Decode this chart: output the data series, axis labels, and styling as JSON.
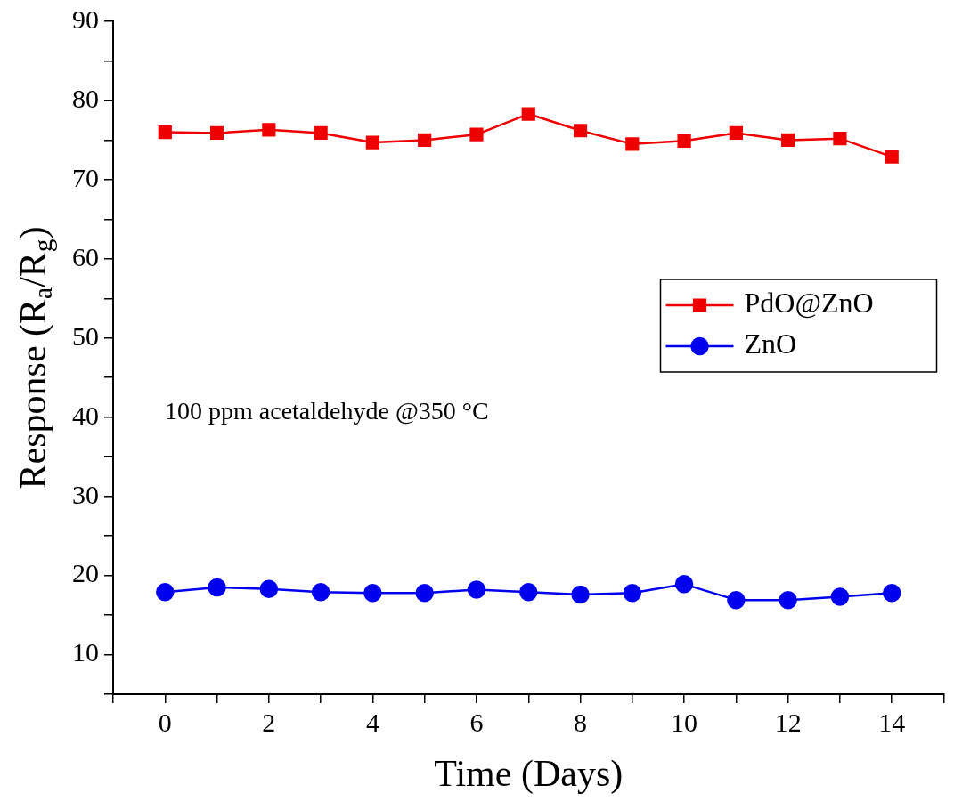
{
  "chart_data": {
    "type": "line",
    "xlabel": "Time (Days)",
    "ylabel": "Response (R$_{a}$/R$_{g}$)",
    "annotations": [
      "100 ppm acetaldehyde @350 °C"
    ],
    "x": [
      0,
      1,
      2,
      3,
      4,
      5,
      6,
      7,
      8,
      9,
      10,
      11,
      12,
      13,
      14
    ],
    "series": [
      {
        "name": "PdO@ZnO",
        "color": "#ee0000",
        "marker": "square",
        "values": [
          76.0,
          75.9,
          76.3,
          75.9,
          74.7,
          75.0,
          75.7,
          78.3,
          76.2,
          74.5,
          74.9,
          75.9,
          75.0,
          75.2,
          72.9
        ]
      },
      {
        "name": "ZnO",
        "color": "#0000ee",
        "marker": "circle",
        "values": [
          17.9,
          18.5,
          18.3,
          17.9,
          17.8,
          17.8,
          18.2,
          17.9,
          17.6,
          17.8,
          18.9,
          16.9,
          16.9,
          17.3,
          17.8
        ]
      }
    ],
    "xlim": [
      -1,
      15
    ],
    "xticks": [
      {
        "value": -1,
        "label": null
      },
      0,
      {
        "value": 1,
        "label": null
      },
      2,
      {
        "value": 3,
        "label": null
      },
      4,
      {
        "value": 5,
        "label": null
      },
      6,
      {
        "value": 7,
        "label": null
      },
      8,
      {
        "value": 9,
        "label": null
      },
      10,
      {
        "value": 11,
        "label": null
      },
      12,
      {
        "value": 13,
        "label": null
      },
      14,
      {
        "value": 15,
        "label": null
      }
    ],
    "ylim": [
      5,
      90
    ],
    "yticks": [
      {
        "value": 5,
        "label": null
      },
      10,
      {
        "value": 15,
        "label": null
      },
      20,
      {
        "value": 25,
        "label": null
      },
      30,
      {
        "value": 35,
        "label": null
      },
      40,
      {
        "value": 45,
        "label": null
      },
      50,
      {
        "value": 55,
        "label": null
      },
      60,
      {
        "value": 65,
        "label": null
      },
      70,
      {
        "value": 75,
        "label": null
      },
      80,
      {
        "value": 85,
        "label": null
      },
      90
    ],
    "grid": false,
    "legend": "right",
    "line_style": "solid"
  }
}
